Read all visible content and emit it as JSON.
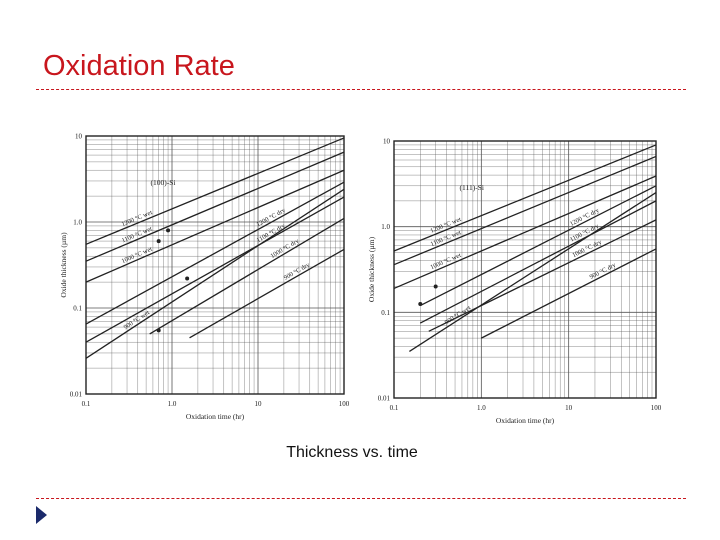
{
  "slide": {
    "title": "Oxidation Rate",
    "caption": "Thickness vs. time"
  },
  "colors": {
    "title": "#c8161d",
    "rule": "#c8161d",
    "arrow": "#1b2a6b",
    "ink": "#222222"
  },
  "chart_data": [
    {
      "type": "line",
      "scale": "log-log",
      "annotation": "(100)-Si",
      "xlabel": "Oxidation time (hr)",
      "ylabel": "Oxide thickness (µm)",
      "xlim": [
        0.1,
        100
      ],
      "ylim": [
        0.01,
        10
      ],
      "xticks": [
        "0.1",
        "1.0",
        "10",
        "100"
      ],
      "yticks": [
        "0.01",
        "0.1",
        "1.0",
        "10"
      ],
      "grid": true,
      "legend": "none",
      "series": [
        {
          "name": "1200 °C wet",
          "x": [
            0.1,
            100
          ],
          "y": [
            0.55,
            9.5
          ]
        },
        {
          "name": "1100 °C wet",
          "x": [
            0.1,
            100
          ],
          "y": [
            0.35,
            6.5
          ]
        },
        {
          "name": "1000 °C wet",
          "x": [
            0.1,
            100
          ],
          "y": [
            0.2,
            4.0
          ]
        },
        {
          "name": "900 °C wet",
          "x": [
            0.1,
            100
          ],
          "y": [
            0.026,
            2.4
          ]
        },
        {
          "name": "1200 °C dry",
          "x": [
            0.1,
            100
          ],
          "y": [
            0.065,
            2.9
          ]
        },
        {
          "name": "1100 °C dry",
          "x": [
            0.1,
            100
          ],
          "y": [
            0.04,
            1.95
          ]
        },
        {
          "name": "1000 °C dry",
          "x": [
            0.55,
            100
          ],
          "y": [
            0.05,
            1.1
          ]
        },
        {
          "name": "900 °C dry",
          "x": [
            1.6,
            100
          ],
          "y": [
            0.045,
            0.48
          ]
        }
      ],
      "markers": [
        {
          "x": 0.7,
          "y": 0.6
        },
        {
          "x": 0.9,
          "y": 0.8
        },
        {
          "x": 0.7,
          "y": 0.055
        },
        {
          "x": 1.5,
          "y": 0.22
        }
      ]
    },
    {
      "type": "line",
      "scale": "log-log",
      "annotation": "(111)-Si",
      "xlabel": "Oxidation time (hr)",
      "ylabel": "Oxide thickness (µm)",
      "xlim": [
        0.1,
        100
      ],
      "ylim": [
        0.01,
        10
      ],
      "xticks": [
        "0.1",
        "1.0",
        "10",
        "100"
      ],
      "yticks": [
        "0.01",
        "0.1",
        "1.0",
        "10"
      ],
      "grid": true,
      "legend": "none",
      "series": [
        {
          "name": "1200 °C wet",
          "x": [
            0.1,
            100
          ],
          "y": [
            0.52,
            9.0
          ]
        },
        {
          "name": "1100 °C wet",
          "x": [
            0.1,
            100
          ],
          "y": [
            0.36,
            6.6
          ]
        },
        {
          "name": "1000 °C wet",
          "x": [
            0.1,
            100
          ],
          "y": [
            0.19,
            3.9
          ]
        },
        {
          "name": "900 °C wet",
          "x": [
            0.15,
            100
          ],
          "y": [
            0.035,
            2.5
          ]
        },
        {
          "name": "1200 °C dry",
          "x": [
            0.2,
            100
          ],
          "y": [
            0.12,
            3.0
          ]
        },
        {
          "name": "1100 °C dry",
          "x": [
            0.2,
            100
          ],
          "y": [
            0.075,
            2.0
          ]
        },
        {
          "name": "1000 °C dry",
          "x": [
            0.25,
            100
          ],
          "y": [
            0.06,
            1.2
          ]
        },
        {
          "name": "900 °C dry",
          "x": [
            1.0,
            100
          ],
          "y": [
            0.05,
            0.55
          ]
        }
      ],
      "markers": [
        {
          "x": 0.2,
          "y": 0.125
        },
        {
          "x": 0.3,
          "y": 0.2
        }
      ]
    }
  ]
}
